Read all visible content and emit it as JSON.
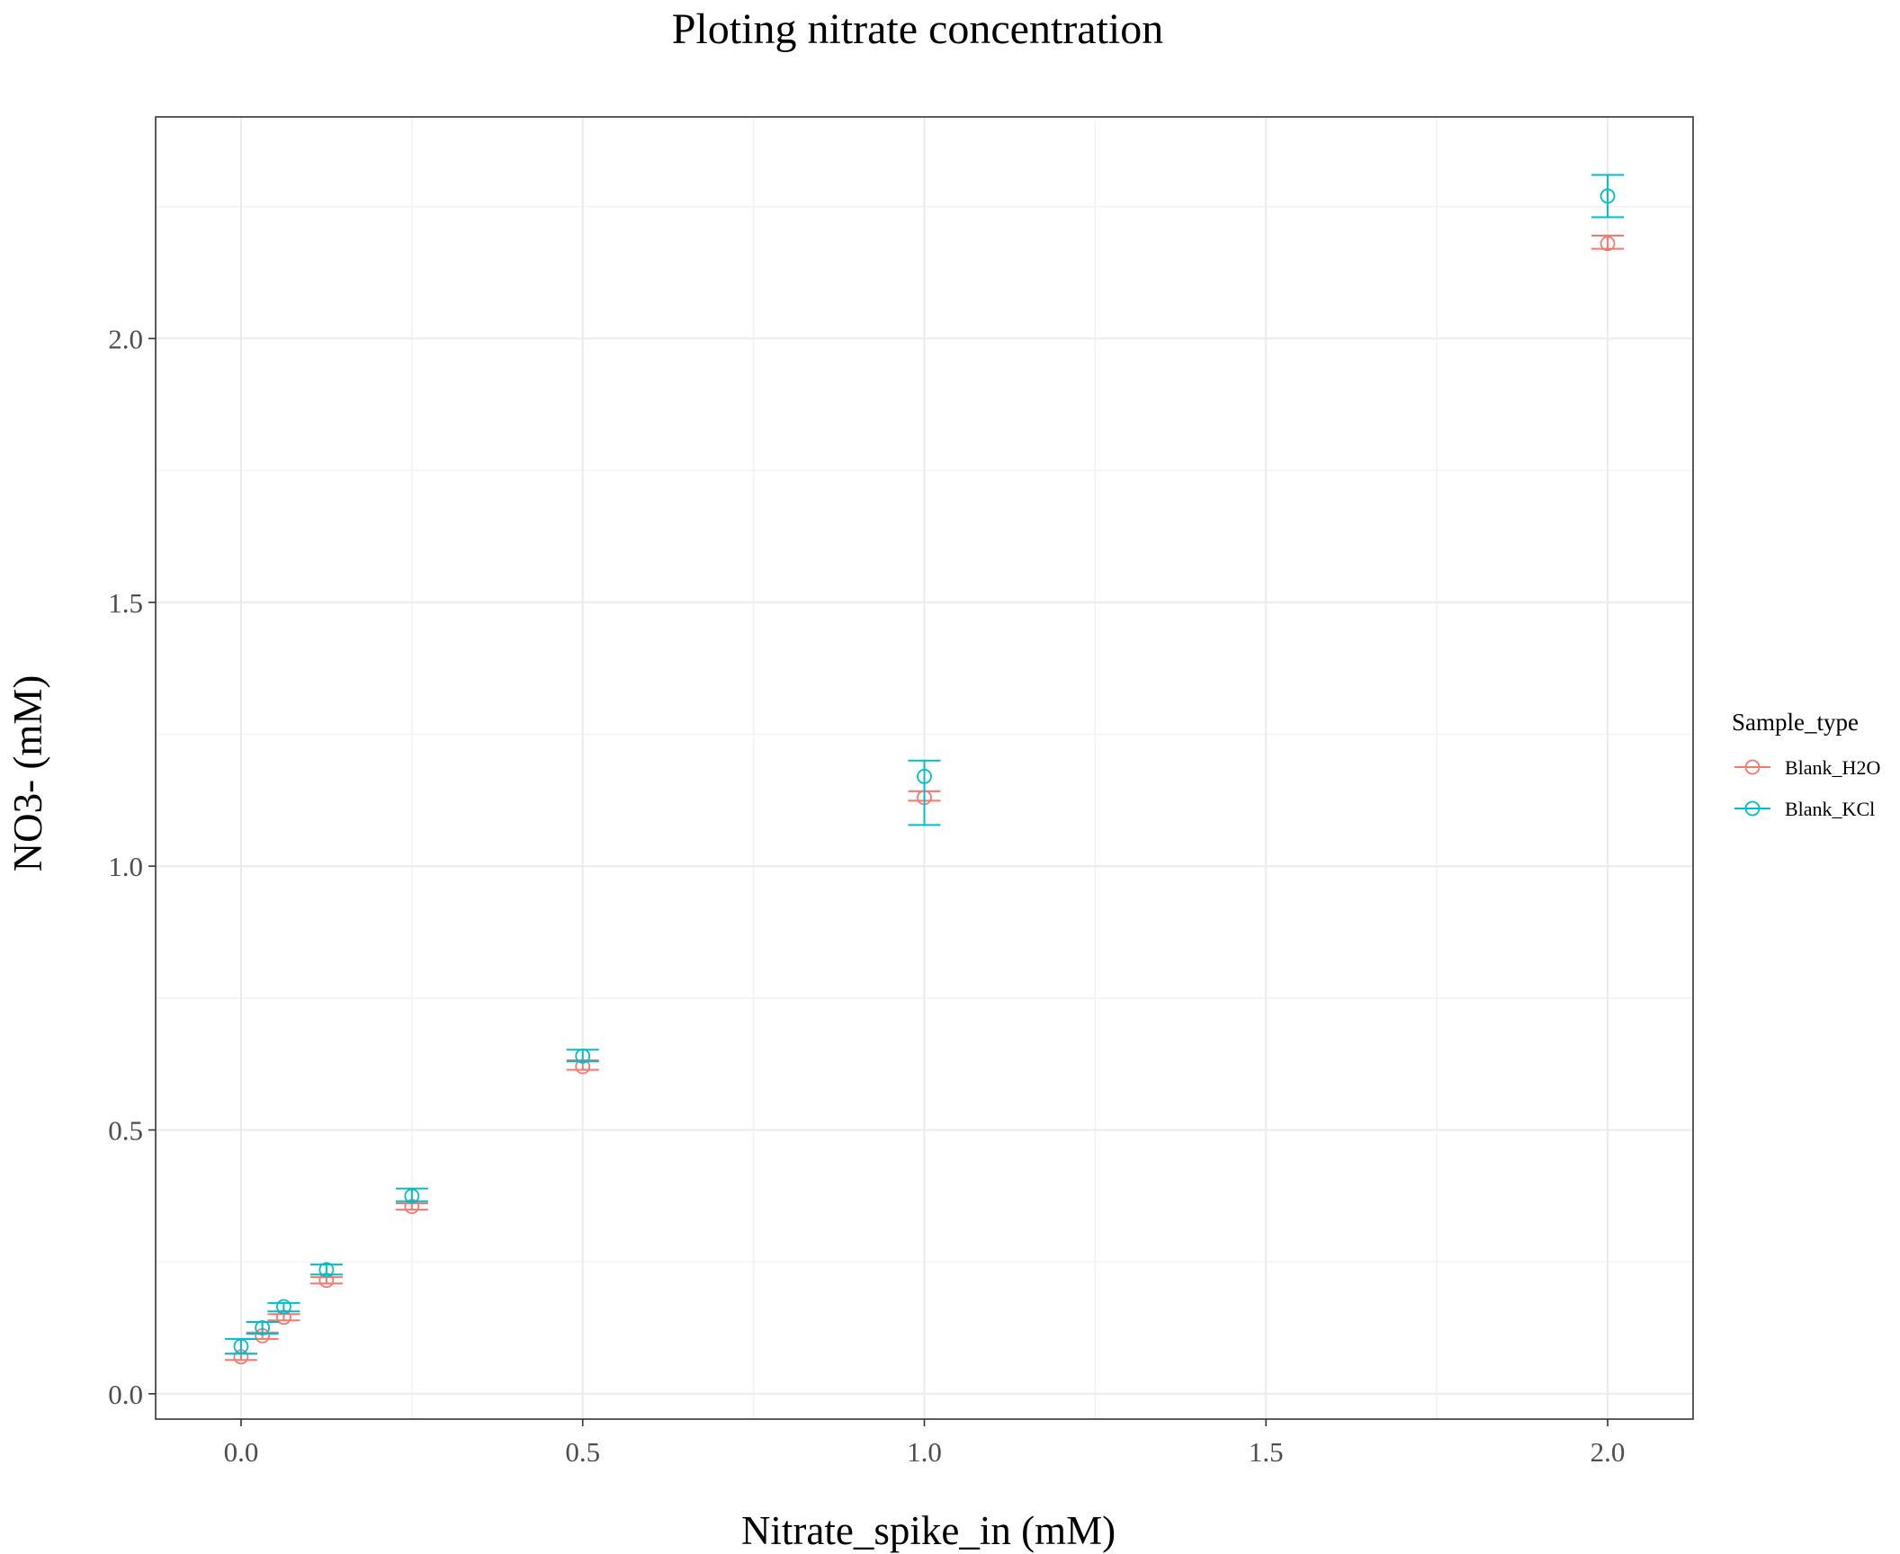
{
  "chart_data": {
    "type": "scatter",
    "title": "Ploting nitrate concentration",
    "xlabel": "Nitrate_spike_in (mM)",
    "ylabel": "NO3- (mM)",
    "xlim": [
      -0.125,
      2.125
    ],
    "ylim": [
      -0.048,
      2.42
    ],
    "x_ticks": [
      "0.0",
      "0.5",
      "1.0",
      "1.5",
      "2.0"
    ],
    "y_ticks": [
      "0.0",
      "0.5",
      "1.0",
      "1.5",
      "2.0"
    ],
    "grid": true,
    "theme": "bw",
    "legend": {
      "title": "Sample_type",
      "placement": "right",
      "entries": [
        "Blank_H2O",
        "Blank_KCl"
      ]
    },
    "series": [
      {
        "name": "Blank_H2O",
        "color": "#F8766D",
        "points": [
          {
            "x": 0,
            "y": 0.07,
            "ymin": 0.064,
            "ymax": 0.076
          },
          {
            "x": 0.03125,
            "y": 0.11,
            "ymin": 0.104,
            "ymax": 0.116
          },
          {
            "x": 0.0625,
            "y": 0.145,
            "ymin": 0.139,
            "ymax": 0.151
          },
          {
            "x": 0.125,
            "y": 0.215,
            "ymin": 0.209,
            "ymax": 0.221
          },
          {
            "x": 0.25,
            "y": 0.355,
            "ymin": 0.349,
            "ymax": 0.361
          },
          {
            "x": 0.5,
            "y": 0.62,
            "ymin": 0.614,
            "ymax": 0.632
          },
          {
            "x": 1,
            "y": 1.13,
            "ymin": 1.124,
            "ymax": 1.142
          },
          {
            "x": 2,
            "y": 2.18,
            "ymin": 2.17,
            "ymax": 2.195
          }
        ]
      },
      {
        "name": "Blank_KCl",
        "color": "#00BFC4",
        "points": [
          {
            "x": 0,
            "y": 0.09,
            "ymin": 0.076,
            "ymax": 0.104
          },
          {
            "x": 0.03125,
            "y": 0.125,
            "ymin": 0.114,
            "ymax": 0.136
          },
          {
            "x": 0.0625,
            "y": 0.165,
            "ymin": 0.156,
            "ymax": 0.172
          },
          {
            "x": 0.125,
            "y": 0.235,
            "ymin": 0.226,
            "ymax": 0.245
          },
          {
            "x": 0.25,
            "y": 0.375,
            "ymin": 0.365,
            "ymax": 0.389
          },
          {
            "x": 0.5,
            "y": 0.64,
            "ymin": 0.63,
            "ymax": 0.652
          },
          {
            "x": 1,
            "y": 1.17,
            "ymin": 1.078,
            "ymax": 1.2
          },
          {
            "x": 2,
            "y": 2.27,
            "ymin": 2.23,
            "ymax": 2.31
          }
        ]
      }
    ]
  }
}
